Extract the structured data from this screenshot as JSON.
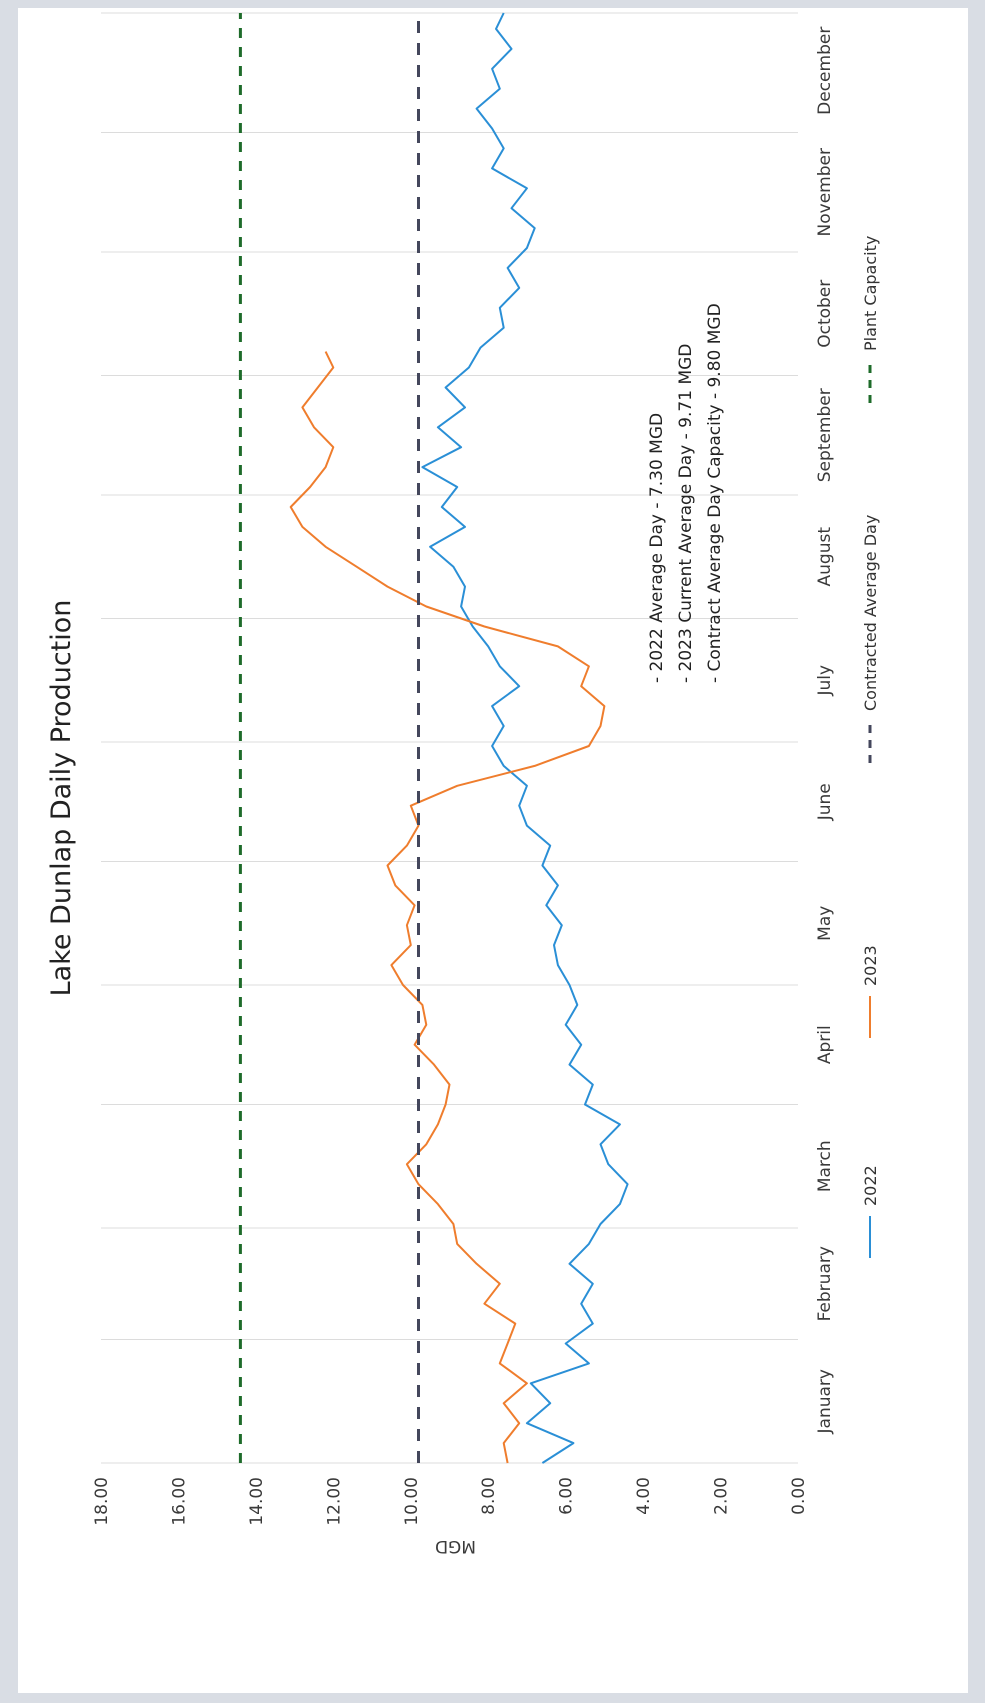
{
  "chart_data": {
    "type": "line",
    "title": "Lake Dunlap Daily Production",
    "ylabel": "MGD",
    "xlabel": "",
    "ylim": [
      0,
      18
    ],
    "y_ticks": [
      "0.00",
      "2.00",
      "4.00",
      "6.00",
      "8.00",
      "10.00",
      "12.00",
      "14.00",
      "16.00",
      "18.00"
    ],
    "y_tick_values": [
      0,
      2,
      4,
      6,
      8,
      10,
      12,
      14,
      16,
      18
    ],
    "x_range_days": [
      1,
      365
    ],
    "months": [
      "January",
      "February",
      "March",
      "April",
      "May",
      "June",
      "July",
      "August",
      "September",
      "October",
      "November",
      "December"
    ],
    "month_start_days": [
      1,
      32,
      60,
      91,
      121,
      152,
      182,
      213,
      244,
      274,
      305,
      335
    ],
    "grid": true,
    "annotations": [
      "- 2022 Average Day - 7.30 MGD",
      "- 2023 Current Average Day - 9.71 MGD",
      "- Contract Average Day Capacity - 9.80 MGD"
    ],
    "legend_position": "bottom",
    "series": [
      {
        "name": "2022",
        "style": "solid",
        "color": "#2a8fd6",
        "points": [
          [
            1,
            6.6
          ],
          [
            6,
            5.8
          ],
          [
            11,
            7.0
          ],
          [
            16,
            6.4
          ],
          [
            21,
            6.9
          ],
          [
            26,
            5.4
          ],
          [
            31,
            6.0
          ],
          [
            36,
            5.3
          ],
          [
            41,
            5.6
          ],
          [
            46,
            5.3
          ],
          [
            51,
            5.9
          ],
          [
            56,
            5.4
          ],
          [
            61,
            5.1
          ],
          [
            66,
            4.6
          ],
          [
            71,
            4.4
          ],
          [
            76,
            4.9
          ],
          [
            81,
            5.1
          ],
          [
            86,
            4.6
          ],
          [
            91,
            5.5
          ],
          [
            96,
            5.3
          ],
          [
            101,
            5.9
          ],
          [
            106,
            5.6
          ],
          [
            111,
            6.0
          ],
          [
            116,
            5.7
          ],
          [
            121,
            5.9
          ],
          [
            126,
            6.2
          ],
          [
            131,
            6.3
          ],
          [
            136,
            6.1
          ],
          [
            141,
            6.5
          ],
          [
            146,
            6.2
          ],
          [
            151,
            6.6
          ],
          [
            156,
            6.4
          ],
          [
            161,
            7.0
          ],
          [
            166,
            7.2
          ],
          [
            171,
            7.0
          ],
          [
            176,
            7.6
          ],
          [
            181,
            7.9
          ],
          [
            186,
            7.6
          ],
          [
            191,
            7.9
          ],
          [
            196,
            7.2
          ],
          [
            201,
            7.7
          ],
          [
            206,
            8.0
          ],
          [
            211,
            8.4
          ],
          [
            216,
            8.7
          ],
          [
            221,
            8.6
          ],
          [
            226,
            8.9
          ],
          [
            231,
            9.5
          ],
          [
            236,
            8.6
          ],
          [
            241,
            9.2
          ],
          [
            246,
            8.8
          ],
          [
            251,
            9.7
          ],
          [
            256,
            8.7
          ],
          [
            261,
            9.3
          ],
          [
            266,
            8.6
          ],
          [
            271,
            9.1
          ],
          [
            276,
            8.5
          ],
          [
            281,
            8.2
          ],
          [
            286,
            7.6
          ],
          [
            291,
            7.7
          ],
          [
            296,
            7.2
          ],
          [
            301,
            7.5
          ],
          [
            306,
            7.0
          ],
          [
            311,
            6.8
          ],
          [
            316,
            7.4
          ],
          [
            321,
            7.0
          ],
          [
            326,
            7.9
          ],
          [
            331,
            7.6
          ],
          [
            336,
            7.9
          ],
          [
            341,
            8.3
          ],
          [
            346,
            7.7
          ],
          [
            351,
            7.9
          ],
          [
            356,
            7.4
          ],
          [
            361,
            7.8
          ],
          [
            365,
            7.6
          ]
        ]
      },
      {
        "name": "2023",
        "style": "solid",
        "color": "#ef7d2d",
        "points": [
          [
            1,
            7.5
          ],
          [
            6,
            7.6
          ],
          [
            11,
            7.2
          ],
          [
            16,
            7.6
          ],
          [
            21,
            7.0
          ],
          [
            26,
            7.7
          ],
          [
            31,
            7.5
          ],
          [
            36,
            7.3
          ],
          [
            41,
            8.1
          ],
          [
            46,
            7.7
          ],
          [
            51,
            8.3
          ],
          [
            56,
            8.8
          ],
          [
            61,
            8.9
          ],
          [
            66,
            9.3
          ],
          [
            71,
            9.8
          ],
          [
            76,
            10.1
          ],
          [
            81,
            9.6
          ],
          [
            86,
            9.3
          ],
          [
            91,
            9.1
          ],
          [
            96,
            9.0
          ],
          [
            101,
            9.4
          ],
          [
            106,
            9.9
          ],
          [
            111,
            9.6
          ],
          [
            116,
            9.7
          ],
          [
            121,
            10.2
          ],
          [
            126,
            10.5
          ],
          [
            131,
            10.0
          ],
          [
            136,
            10.1
          ],
          [
            141,
            9.9
          ],
          [
            146,
            10.4
          ],
          [
            151,
            10.6
          ],
          [
            156,
            10.1
          ],
          [
            161,
            9.8
          ],
          [
            166,
            10.0
          ],
          [
            171,
            8.8
          ],
          [
            176,
            6.8
          ],
          [
            181,
            5.4
          ],
          [
            186,
            5.1
          ],
          [
            191,
            5.0
          ],
          [
            196,
            5.6
          ],
          [
            201,
            5.4
          ],
          [
            206,
            6.2
          ],
          [
            211,
            8.1
          ],
          [
            216,
            9.6
          ],
          [
            221,
            10.6
          ],
          [
            226,
            11.4
          ],
          [
            231,
            12.2
          ],
          [
            236,
            12.8
          ],
          [
            241,
            13.1
          ],
          [
            246,
            12.6
          ],
          [
            251,
            12.2
          ],
          [
            256,
            12.0
          ],
          [
            261,
            12.5
          ],
          [
            266,
            12.8
          ],
          [
            271,
            12.4
          ],
          [
            276,
            12.0
          ],
          [
            280,
            12.2
          ]
        ]
      },
      {
        "name": "Contracted Average Day",
        "style": "dashed",
        "color": "#44475c",
        "points": [
          [
            1,
            9.8
          ],
          [
            365,
            9.8
          ]
        ]
      },
      {
        "name": "Plant Capacity",
        "style": "dashed",
        "color": "#1e6b2a",
        "points": [
          [
            1,
            14.4
          ],
          [
            365,
            14.4
          ]
        ]
      }
    ]
  }
}
